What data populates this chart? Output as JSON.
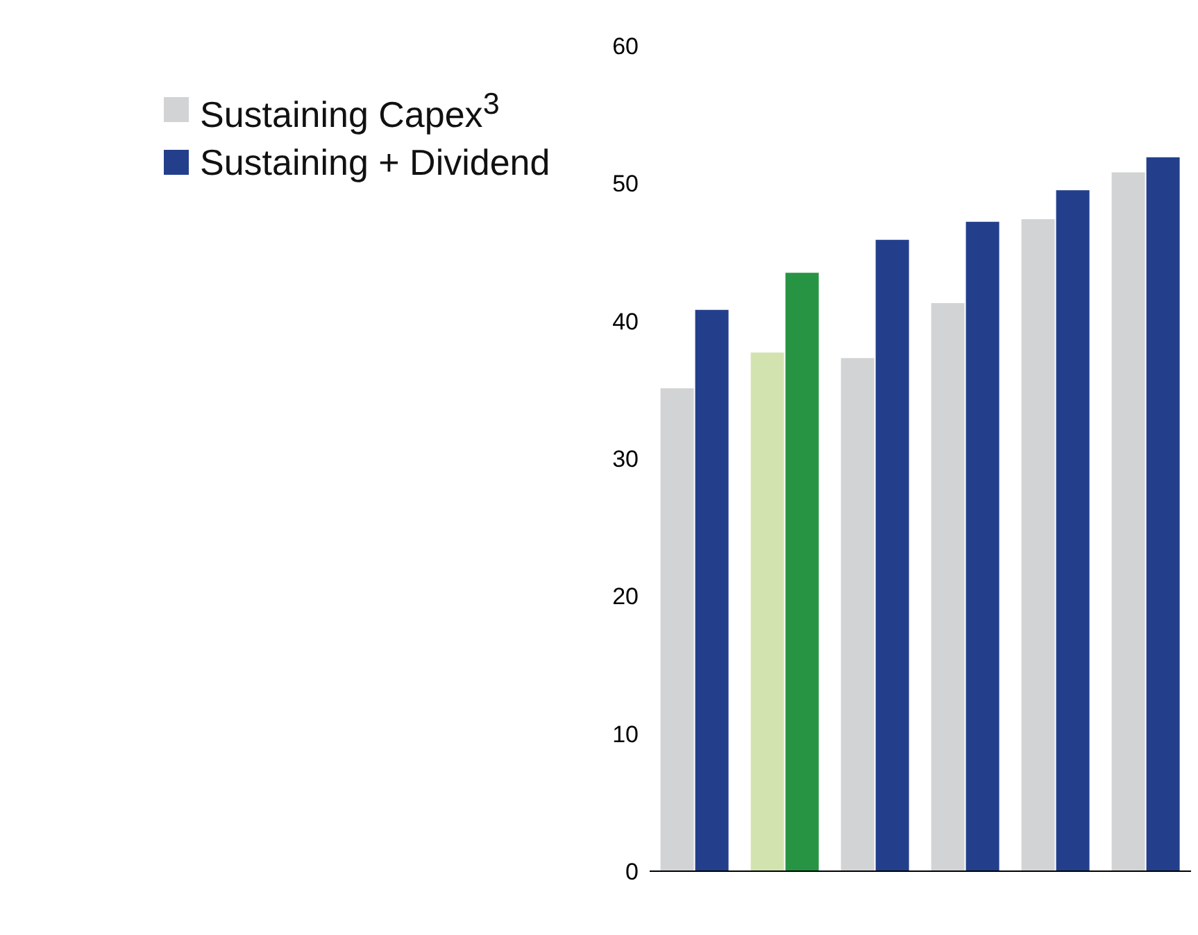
{
  "chart_data": {
    "type": "bar",
    "categories": [
      null,
      null,
      null,
      null,
      null,
      null
    ],
    "series": [
      {
        "name": "Sustaining Capex$^{3}$",
        "color": "#d1d3d4",
        "colors": [
          "#d1d3d4",
          "#d3e3b0",
          "#d1d3d4",
          "#d1d3d4",
          "#d1d3d4",
          "#d1d3d4"
        ],
        "values": [
          35.1,
          37.7,
          37.3,
          41.3,
          47.4,
          50.8
        ]
      },
      {
        "name": "Sustaining + Dividend",
        "color": "#233f8c",
        "colors": [
          "#233f8c",
          "#279443",
          "#233f8c",
          "#233f8c",
          "#233f8c",
          "#233f8c"
        ],
        "values": [
          40.8,
          43.5,
          45.9,
          47.2,
          49.5,
          51.9
        ]
      }
    ],
    "ylim": [
      0,
      60
    ],
    "yticks": [
      0,
      10,
      20,
      30,
      40,
      50,
      60
    ],
    "grid": false,
    "legend": "top left"
  }
}
